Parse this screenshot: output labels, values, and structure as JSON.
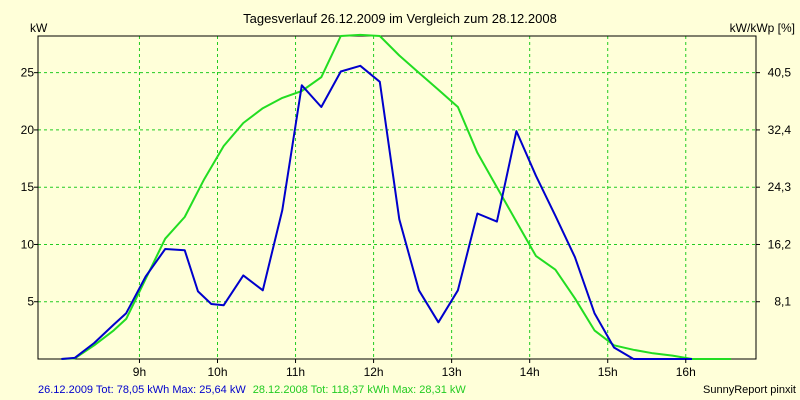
{
  "chart_data": {
    "type": "line",
    "title": "Tagesverlauf 26.12.2009 im Vergleich zum 28.12.2008",
    "ylabel_left": "kW",
    "ylabel_right": "kW/kWp [%]",
    "x_ticks": [
      {
        "value": 9,
        "label": "9h"
      },
      {
        "value": 10,
        "label": "10h"
      },
      {
        "value": 11,
        "label": "11h"
      },
      {
        "value": 12,
        "label": "12h"
      },
      {
        "value": 13,
        "label": "13h"
      },
      {
        "value": 14,
        "label": "14h"
      },
      {
        "value": 15,
        "label": "15h"
      },
      {
        "value": 16,
        "label": "16h"
      }
    ],
    "xlim": [
      7.7,
      16.9
    ],
    "ylim": [
      0,
      28.2
    ],
    "y_ticks_left": [
      {
        "value": 5,
        "label": "5"
      },
      {
        "value": 10,
        "label": "10"
      },
      {
        "value": 15,
        "label": "15"
      },
      {
        "value": 20,
        "label": "20"
      },
      {
        "value": 25,
        "label": "25"
      }
    ],
    "y_ticks_right": [
      {
        "value": 5,
        "label": "8,1"
      },
      {
        "value": 10,
        "label": "16,2"
      },
      {
        "value": 15,
        "label": "24,3"
      },
      {
        "value": 20,
        "label": "32,4"
      },
      {
        "value": 25,
        "label": "40,5"
      }
    ],
    "grid": true,
    "series": [
      {
        "name": "26.12.2009",
        "color": "#0000cc",
        "x": [
          8.0,
          8.17,
          8.42,
          8.67,
          8.83,
          9.08,
          9.33,
          9.58,
          9.75,
          9.92,
          10.08,
          10.33,
          10.58,
          10.83,
          11.08,
          11.33,
          11.58,
          11.83,
          12.08,
          12.33,
          12.58,
          12.83,
          13.08,
          13.33,
          13.58,
          13.83,
          14.08,
          14.33,
          14.58,
          14.83,
          15.08,
          15.33,
          15.58,
          15.83,
          16.08
        ],
        "y": [
          0.0,
          0.1,
          1.4,
          3.0,
          4.0,
          7.2,
          9.6,
          9.5,
          5.9,
          4.8,
          4.7,
          7.3,
          6.0,
          13.0,
          23.9,
          22.0,
          25.1,
          25.6,
          24.2,
          12.2,
          6.0,
          3.2,
          6.0,
          12.7,
          12.0,
          19.9,
          16.0,
          12.5,
          8.9,
          4.0,
          1.0,
          0.0,
          0.0,
          0.0,
          0.0
        ]
      },
      {
        "name": "28.12.2008",
        "color": "#22dd22",
        "x": [
          8.0,
          8.17,
          8.42,
          8.67,
          8.83,
          9.08,
          9.33,
          9.58,
          9.83,
          10.08,
          10.33,
          10.58,
          10.83,
          11.08,
          11.33,
          11.58,
          11.83,
          12.08,
          12.33,
          12.58,
          12.83,
          13.08,
          13.33,
          13.58,
          13.83,
          14.08,
          14.33,
          14.58,
          14.83,
          15.08,
          15.33,
          15.58,
          15.83,
          16.08,
          16.33,
          16.58
        ],
        "y": [
          0.0,
          0.05,
          1.2,
          2.5,
          3.5,
          7.0,
          10.5,
          12.4,
          15.7,
          18.6,
          20.6,
          21.9,
          22.8,
          23.4,
          24.6,
          28.2,
          28.3,
          28.2,
          26.5,
          25.0,
          23.5,
          22.0,
          18.0,
          15.0,
          12.0,
          9.0,
          7.8,
          5.3,
          2.5,
          1.2,
          0.8,
          0.5,
          0.3,
          0.0,
          0.0,
          0.0
        ]
      }
    ],
    "footer": {
      "series1_text": "26.12.2009 Tot: 78,05 kWh Max: 25,64 kW",
      "series2_text": "28.12.2008 Tot: 118,37 kWh Max: 28,31 kW",
      "credit": "SunnyReport pinxit"
    }
  }
}
